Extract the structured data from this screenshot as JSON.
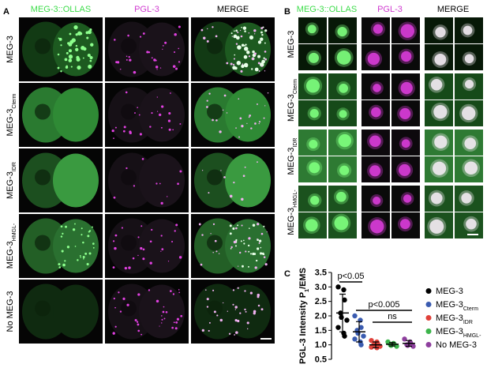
{
  "panel_a": {
    "label": "A",
    "columns": [
      "MEG-3::OLLAS",
      "PGL-3",
      "MERGE"
    ],
    "rows": [
      {
        "text": "MEG-3"
      },
      {
        "text": "MEG-3",
        "sub": "Cterm"
      },
      {
        "text": "MEG-3",
        "sub": "IDR"
      },
      {
        "text": "MEG-3",
        "sub": "HMGL-"
      },
      {
        "text": "No MEG-3"
      }
    ]
  },
  "panel_b": {
    "label": "B",
    "columns": [
      "MEG-3::OLLAS",
      "PGL-3",
      "MERGE"
    ],
    "rows": [
      {
        "text": "MEG-3"
      },
      {
        "text": "MEG-3",
        "sub": "Cterm"
      },
      {
        "text": "MEG-3",
        "sub": "IDR"
      },
      {
        "text": "MEG-3",
        "sub": "HMGL-"
      }
    ]
  },
  "chart_data": {
    "label": "C",
    "type": "scatter",
    "ylabel": {
      "text": "PGL-3 Intensity P",
      "sub": "1",
      "tail": "/EMS"
    },
    "ylim": [
      0.5,
      3.5
    ],
    "yticks": [
      0.5,
      {
        "value": 1,
        "label": "1.0"
      },
      1.5,
      {
        "value": 2,
        "label": "2.0"
      },
      2.5,
      {
        "value": 3,
        "label": "3.0"
      },
      3.5
    ],
    "annotations": [
      "p<0.05",
      "p<0.005",
      "ns"
    ],
    "series": [
      {
        "name": "MEG-3",
        "color": "#000000",
        "values": [
          3.0,
          2.9,
          2.55,
          2.1,
          1.95,
          1.85,
          1.6,
          1.4,
          1.3
        ],
        "mean": 2.1,
        "sd": 0.65
      },
      {
        "name": "MEG-3",
        "name_sub": "Cterm",
        "color": "#3a5bb0",
        "values": [
          2.0,
          1.85,
          1.6,
          1.5,
          1.4,
          1.3,
          1.2,
          1.1,
          1.0
        ],
        "mean": 1.45,
        "sd": 0.35
      },
      {
        "name": "MEG-3",
        "name_sub": "IDR",
        "color": "#e0413a",
        "values": [
          1.15,
          1.1,
          1.05,
          1.0,
          0.98,
          0.95,
          0.92,
          0.9
        ],
        "mean": 1.0,
        "sd": 0.1
      },
      {
        "name": "MEG-3",
        "name_sub": "HMGL-",
        "color": "#3cb44b",
        "values": [
          1.1,
          1.05,
          1.02,
          1.0,
          0.98,
          0.95
        ],
        "mean": 1.02,
        "sd": 0.06
      },
      {
        "name": "No MEG-3",
        "color": "#8e3f9e",
        "values": [
          1.2,
          1.1,
          1.05,
          1.0,
          0.98,
          0.95
        ],
        "mean": 1.05,
        "sd": 0.1
      }
    ]
  }
}
